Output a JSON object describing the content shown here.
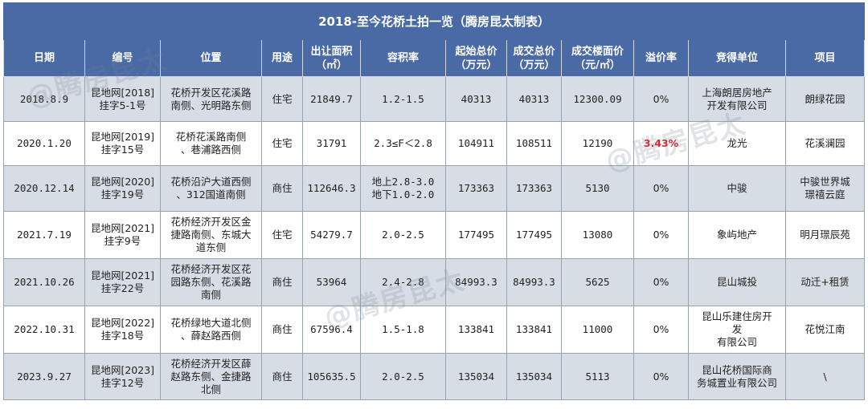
{
  "title": "2018-至今花桥土拍一览（腾房昆太制表）",
  "headers": [
    "日期",
    "编号",
    "位置",
    "用途",
    "出让面积\n（㎡）",
    "容积率",
    "起始总价\n（万元）",
    "成交总价\n（万元）",
    "成交楼面价\n（元/㎡）",
    "溢价率",
    "竞得单位",
    "项目"
  ],
  "rows": [
    {
      "date": "2018.8.9",
      "code": "昆地网[2018]\n挂字5-1号",
      "location": "花桥开发区花溪路\n南侧、光明路东侧",
      "use": "住宅",
      "area": "21849.7",
      "far": "1.2-1.5",
      "start_price": "40313",
      "deal_price": "40313",
      "floor_price": "12300.09",
      "premium": "0%",
      "winner": "上海朗居房地产\n开发有限公司",
      "project": "朗绿花园"
    },
    {
      "date": "2020.1.20",
      "code": "昆地网[2019]\n挂字15号",
      "location": "花桥花溪路南侧\n、巷浦路西侧",
      "use": "住宅",
      "area": "31791",
      "far": "2.3≤F＜2.8",
      "start_price": "104911",
      "deal_price": "108511",
      "floor_price": "12190",
      "premium": "3.43%",
      "winner": "龙光",
      "project": "花溪澜园"
    },
    {
      "date": "2020.12.14",
      "code": "昆地网[2020]\n挂字19号",
      "location": "花桥沿沪大道西侧\n、312国道南侧",
      "use": "商住",
      "area": "112646.3",
      "far": "地上2.8-3.0\n地下1.0-2.0",
      "start_price": "173363",
      "deal_price": "173363",
      "floor_price": "5130",
      "premium": "0%",
      "winner": "中骏",
      "project": "中骏世界城\n璟禧云庭"
    },
    {
      "date": "2021.7.19",
      "code": "昆地网[2021]\n挂字9号",
      "location": "花桥经济开发区金\n捷路南侧、东城大\n道东侧",
      "use": "住宅",
      "area": "54279.7",
      "far": "2.0-2.5",
      "start_price": "177495",
      "deal_price": "177495",
      "floor_price": "13080",
      "premium": "0%",
      "winner": "象屿地产",
      "project": "明月璟辰苑"
    },
    {
      "date": "2021.10.26",
      "code": "昆地网[2021]\n挂字22号",
      "location": "花桥经济开发区花\n园路东侧、花溪路\n南侧",
      "use": "商住",
      "area": "53964",
      "far": "2.4-2.8",
      "start_price": "84993.3",
      "deal_price": "84993.3",
      "floor_price": "5625",
      "premium": "0%",
      "winner": "昆山城投",
      "project": "动迁+租赁"
    },
    {
      "date": "2022.10.31",
      "code": "昆地网[2022]\n挂字18号",
      "location": "花桥绿地大道北侧\n、薛赵路西侧",
      "use": "商住",
      "area": "67596.4",
      "far": "1.5-1.8",
      "start_price": "133841",
      "deal_price": "133841",
      "floor_price": "11000",
      "premium": "0%",
      "winner": "昆山乐建住房开\n发\n有限公司",
      "project": "花悦江南"
    },
    {
      "date": "2023.9.27",
      "code": "昆地网[2023]\n挂字12号",
      "location": "花桥经济开发区薛\n赵路东侧、金捷路\n北侧",
      "use": "商住",
      "area": "105635.5",
      "far": "2.0-2.5",
      "start_price": "135034",
      "deal_price": "135034",
      "floor_price": "5113",
      "premium": "0%",
      "winner": "昆山花桥国际商\n务城置业有限公司",
      "project": "\\"
    }
  ],
  "watermark": "@腾房昆太",
  "colors": {
    "header_bg": "#4a6aa6",
    "shade_row": "#d7dde5",
    "premium_highlight": "#e8202a"
  }
}
